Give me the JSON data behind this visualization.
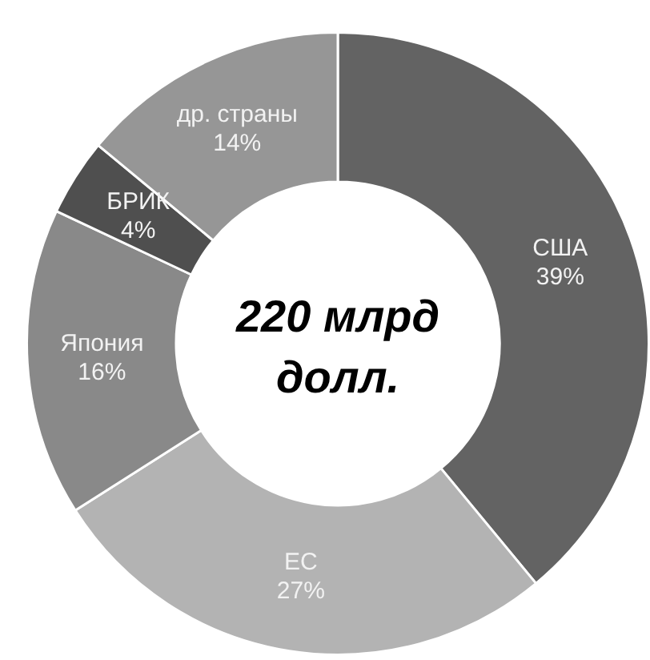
{
  "chart_data": {
    "type": "donut",
    "title": "220 млрд долл.",
    "categories": [
      "США",
      "ЕС",
      "Япония",
      "БРИК",
      "др. страны"
    ],
    "values": [
      39,
      27,
      16,
      4,
      14
    ],
    "value_labels": [
      "39%",
      "27%",
      "16%",
      "4%",
      "14%"
    ],
    "colors": [
      "#636363",
      "#b3b3b3",
      "#898989",
      "#4f4f4f",
      "#969696"
    ],
    "legend": false
  }
}
